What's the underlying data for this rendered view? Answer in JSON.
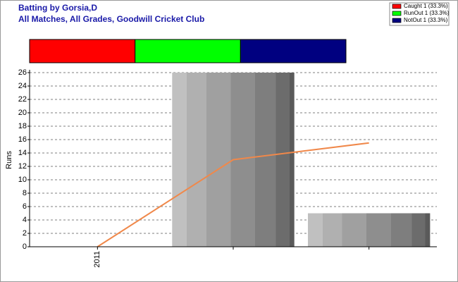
{
  "chart_data": [
    {
      "type": "stacked_bar",
      "title": "Batting by Gorsia,D",
      "subtitle": "All Matches, All Grades, Goodwill Cricket Club",
      "series": [
        {
          "name": "Caught 1 (33.3%)",
          "color": "#ff0000",
          "values": [
            33.3
          ]
        },
        {
          "name": "RunOut 1 (33.3%)",
          "color": "#00ff00",
          "values": [
            33.3
          ]
        },
        {
          "name": "NotOut 1 (33.3%)",
          "color": "#000080",
          "values": [
            33.3
          ]
        }
      ],
      "xlim": [
        0,
        99.9
      ]
    },
    {
      "type": "bar",
      "categories": [
        "2011",
        null,
        null
      ],
      "values": [
        0,
        26,
        5
      ],
      "line": {
        "values": [
          0,
          13,
          15.5
        ],
        "color": "#f0884a"
      },
      "y_label": "Runs",
      "ylim": [
        0,
        26
      ],
      "yticks": [
        0,
        2,
        4,
        6,
        8,
        10,
        12,
        14,
        16,
        18,
        20,
        22,
        24,
        26
      ],
      "grid": true
    }
  ]
}
